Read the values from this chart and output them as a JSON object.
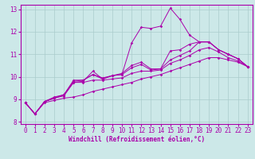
{
  "bg_color": "#cce8e8",
  "line_color": "#aa00aa",
  "grid_color": "#aacccc",
  "xlabel": "Windchill (Refroidissement éolien,°C)",
  "xlim": [
    -0.5,
    23.5
  ],
  "ylim": [
    7.9,
    13.2
  ],
  "yticks": [
    8,
    9,
    10,
    11,
    12,
    13
  ],
  "xticks": [
    0,
    1,
    2,
    3,
    4,
    5,
    6,
    7,
    8,
    9,
    10,
    11,
    12,
    13,
    14,
    15,
    16,
    17,
    18,
    19,
    20,
    21,
    22,
    23
  ],
  "lines": [
    [
      8.85,
      8.35,
      8.9,
      9.05,
      9.15,
      9.75,
      9.8,
      10.25,
      9.9,
      10.05,
      10.1,
      11.5,
      12.2,
      12.15,
      12.25,
      13.05,
      12.55,
      11.85,
      11.55,
      11.55,
      11.2,
      11.0,
      10.8,
      10.45
    ],
    [
      8.85,
      8.35,
      8.9,
      9.05,
      9.2,
      9.8,
      9.85,
      10.1,
      9.95,
      10.05,
      10.15,
      10.5,
      10.65,
      10.35,
      10.35,
      11.15,
      11.2,
      11.45,
      11.55,
      11.55,
      11.2,
      11.0,
      10.8,
      10.45
    ],
    [
      8.85,
      8.35,
      8.9,
      9.1,
      9.2,
      9.85,
      9.85,
      10.1,
      9.9,
      10.05,
      10.1,
      10.4,
      10.55,
      10.3,
      10.35,
      10.75,
      10.95,
      11.15,
      11.55,
      11.55,
      11.2,
      11.0,
      10.8,
      10.45
    ],
    [
      8.85,
      8.35,
      8.9,
      9.05,
      9.2,
      9.75,
      9.75,
      9.85,
      9.85,
      9.9,
      9.95,
      10.15,
      10.25,
      10.25,
      10.3,
      10.6,
      10.75,
      10.95,
      11.2,
      11.3,
      11.1,
      10.85,
      10.7,
      10.45
    ],
    [
      8.85,
      8.35,
      8.85,
      8.95,
      9.05,
      9.1,
      9.2,
      9.35,
      9.45,
      9.55,
      9.65,
      9.75,
      9.9,
      10.0,
      10.1,
      10.25,
      10.4,
      10.55,
      10.7,
      10.85,
      10.85,
      10.75,
      10.65,
      10.45
    ]
  ],
  "tick_fontsize": 5.5,
  "xlabel_fontsize": 5.5
}
